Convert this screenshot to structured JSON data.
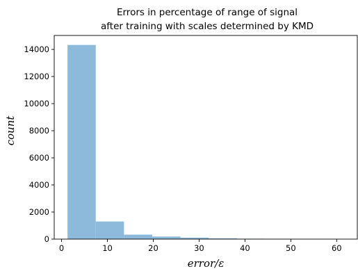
{
  "chart_data": {
    "type": "bar",
    "title_line1": "Errors in percentage of range of signal",
    "title_line2": "after training with scales determined by KMD",
    "xlabel": "error/ε",
    "ylabel": "count",
    "xlim": [
      -1.6,
      64.5
    ],
    "ylim": [
      0,
      15030
    ],
    "xticks": [
      0,
      10,
      20,
      30,
      40,
      50,
      60
    ],
    "yticks": [
      0,
      2000,
      4000,
      6000,
      8000,
      10000,
      12000,
      14000
    ],
    "bin_edges": [
      1.3,
      7.46,
      13.62,
      19.78,
      25.94,
      32.1,
      38.26,
      44.42,
      50.58,
      56.74,
      62.9
    ],
    "values": [
      14330,
      1300,
      330,
      190,
      110,
      60,
      30,
      15,
      10,
      5
    ],
    "bar_color": "#8db9da",
    "grid": false
  }
}
